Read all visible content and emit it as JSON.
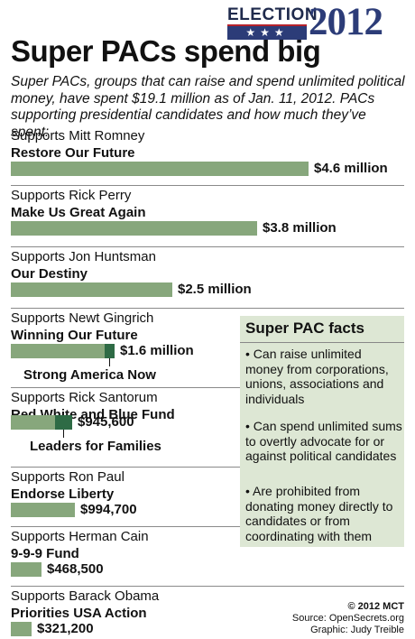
{
  "header": {
    "logo_word": "ELECTION",
    "logo_stars": "★★★",
    "logo_year": "2012",
    "title": "Super PACs spend big",
    "subtitle": "Super PACs, groups that can raise and spend unlimited political money, have spent $19.1 million as of Jan. 11, 2012. PACs supporting presidential candidates and how much they’ve spent:"
  },
  "colors": {
    "bar_light": "#87a77c",
    "bar_dark": "#2e6b45",
    "facts_bg": "#dde7d4",
    "logo_blue": "#2c3c78",
    "logo_red": "#b5222c"
  },
  "chart_data": {
    "type": "bar",
    "orientation": "horizontal",
    "unit": "USD",
    "groups": [
      {
        "supports": "Supports Mitt Romney",
        "pacs": [
          {
            "name": "Restore Our Future",
            "value": 4600000,
            "label": "$4.6 million"
          }
        ]
      },
      {
        "supports": "Supports Rick Perry",
        "pacs": [
          {
            "name": "Make Us Great Again",
            "value": 3800000,
            "label": "$3.8 million"
          }
        ]
      },
      {
        "supports": "Supports Jon Huntsman",
        "pacs": [
          {
            "name": "Our Destiny",
            "value": 2500000,
            "label": "$2.5 million"
          }
        ]
      },
      {
        "supports": "Supports Newt Gingrich",
        "total_label": "$1.6 million",
        "pacs": [
          {
            "name": "Winning Our Future",
            "value": 1450000
          },
          {
            "name": "Strong America Now",
            "value": 150000
          }
        ]
      },
      {
        "supports": "Supports Rick Santorum",
        "total_label": "$945,600",
        "pacs": [
          {
            "name": "Red White and Blue Fund",
            "value": 680000
          },
          {
            "name": "Leaders for Families",
            "value": 265600
          }
        ]
      },
      {
        "supports": "Supports Ron Paul",
        "pacs": [
          {
            "name": "Endorse Liberty",
            "value": 994700,
            "label": "$994,700"
          }
        ]
      },
      {
        "supports": "Supports Herman Cain",
        "pacs": [
          {
            "name": "9-9-9 Fund",
            "value": 468500,
            "label": "$468,500"
          }
        ]
      },
      {
        "supports": "Supports Barack Obama",
        "pacs": [
          {
            "name": "Priorities USA Action",
            "value": 321200,
            "label": "$321,200"
          }
        ]
      }
    ]
  },
  "facts": {
    "title": "Super PAC facts",
    "items": [
      "• Can raise unlimited money from corporations, unions, associations and individuals",
      "• Can spend unlimited sums to overtly advocate for or against political candidates",
      "• Are prohibited from donating money directly to candidates or from coordinating with them"
    ]
  },
  "credits": {
    "copyright": "© 2012 MCT",
    "source": "Source: OpenSecrets.org",
    "graphic": "Graphic: Judy Treible"
  }
}
